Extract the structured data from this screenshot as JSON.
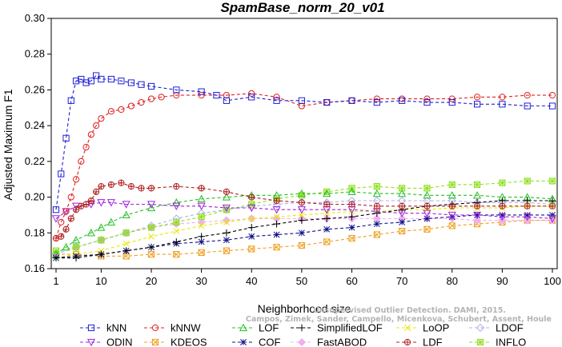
{
  "chart_data": {
    "type": "line",
    "title": "SpamBase_norm_20_v01",
    "xlabel": "Neighborhood size",
    "ylabel": "Adjusted Maximum F1",
    "xlim": [
      1,
      100
    ],
    "ylim": [
      0.16,
      0.3
    ],
    "xticks": [
      "1",
      "10",
      "20",
      "30",
      "40",
      "50",
      "60",
      "70",
      "80",
      "90",
      "100"
    ],
    "yticks": [
      "0.16",
      "0.18",
      "0.20",
      "0.22",
      "0.24",
      "0.26",
      "0.28",
      "0.30"
    ],
    "citation": [
      "Campos, Zimek, Sander, Campello, Micenkova, Schubert, Assent, Houle",
      "Unsupervised Outlier Detection. DAMI, 2015."
    ],
    "series": [
      {
        "name": "kNN",
        "color": "#1f1fd6",
        "marker": "square",
        "x": [
          1,
          2,
          3,
          4,
          5,
          6,
          7,
          8,
          9,
          10,
          12,
          14,
          16,
          18,
          20,
          25,
          30,
          33,
          35,
          40,
          45,
          50,
          55,
          60,
          65,
          70,
          75,
          80,
          85,
          90,
          95,
          100
        ],
        "y": [
          0.193,
          0.213,
          0.233,
          0.254,
          0.265,
          0.266,
          0.264,
          0.265,
          0.268,
          0.266,
          0.266,
          0.265,
          0.264,
          0.263,
          0.262,
          0.26,
          0.259,
          0.257,
          0.254,
          0.256,
          0.254,
          0.254,
          0.253,
          0.254,
          0.253,
          0.254,
          0.253,
          0.253,
          0.252,
          0.252,
          0.251,
          0.251
        ]
      },
      {
        "name": "kNNW",
        "color": "#e02020",
        "marker": "circle",
        "x": [
          1,
          2,
          3,
          4,
          5,
          6,
          7,
          8,
          9,
          10,
          12,
          14,
          16,
          18,
          20,
          22,
          25,
          30,
          35,
          40,
          45,
          50,
          55,
          60,
          65,
          70,
          75,
          80,
          85,
          90,
          95,
          100
        ],
        "y": [
          0.177,
          0.186,
          0.192,
          0.2,
          0.21,
          0.22,
          0.228,
          0.235,
          0.24,
          0.244,
          0.248,
          0.249,
          0.251,
          0.253,
          0.255,
          0.256,
          0.257,
          0.257,
          0.257,
          0.258,
          0.256,
          0.251,
          0.253,
          0.254,
          0.255,
          0.255,
          0.255,
          0.255,
          0.256,
          0.256,
          0.257,
          0.257
        ]
      },
      {
        "name": "LOF",
        "color": "#22c022",
        "marker": "triangle-up",
        "x": [
          1,
          3,
          5,
          8,
          10,
          12,
          15,
          20,
          25,
          30,
          35,
          40,
          45,
          50,
          55,
          60,
          65,
          70,
          75,
          80,
          85,
          90,
          95,
          100
        ],
        "y": [
          0.168,
          0.172,
          0.176,
          0.18,
          0.183,
          0.186,
          0.19,
          0.194,
          0.197,
          0.199,
          0.2,
          0.201,
          0.201,
          0.202,
          0.202,
          0.203,
          0.202,
          0.202,
          0.201,
          0.201,
          0.201,
          0.2,
          0.2,
          0.199
        ]
      },
      {
        "name": "SimplifiedLOF",
        "color": "#000000",
        "marker": "plus",
        "x": [
          1,
          5,
          10,
          15,
          20,
          25,
          30,
          35,
          40,
          45,
          50,
          55,
          60,
          65,
          70,
          75,
          80,
          85,
          90,
          95,
          100
        ],
        "y": [
          0.166,
          0.166,
          0.168,
          0.17,
          0.172,
          0.175,
          0.178,
          0.18,
          0.183,
          0.185,
          0.187,
          0.188,
          0.189,
          0.191,
          0.193,
          0.195,
          0.196,
          0.197,
          0.198,
          0.198,
          0.198
        ]
      },
      {
        "name": "LoOP",
        "color": "#e8e800",
        "marker": "x",
        "x": [
          1,
          5,
          10,
          15,
          20,
          25,
          30,
          35,
          40,
          45,
          50,
          55,
          60,
          65,
          70,
          75,
          80,
          85,
          90,
          95,
          100
        ],
        "y": [
          0.166,
          0.168,
          0.17,
          0.174,
          0.178,
          0.181,
          0.184,
          0.186,
          0.188,
          0.189,
          0.19,
          0.191,
          0.192,
          0.192,
          0.193,
          0.193,
          0.194,
          0.194,
          0.194,
          0.195,
          0.195
        ]
      },
      {
        "name": "LDOF",
        "color": "#b0b0f0",
        "marker": "diamond",
        "x": [
          1,
          5,
          10,
          15,
          20,
          25,
          30,
          35,
          40,
          45,
          50,
          55,
          60,
          65,
          70,
          75,
          80,
          85,
          90,
          95,
          100
        ],
        "y": [
          0.168,
          0.172,
          0.176,
          0.18,
          0.184,
          0.188,
          0.191,
          0.193,
          0.195,
          0.196,
          0.197,
          0.197,
          0.198,
          0.198,
          0.198,
          0.198,
          0.198,
          0.197,
          0.197,
          0.197,
          0.196
        ]
      },
      {
        "name": "ODIN",
        "color": "#a020e0",
        "marker": "triangle-down",
        "x": [
          1,
          3,
          5,
          8,
          10,
          12,
          15,
          20,
          25,
          30,
          35,
          40,
          45,
          50,
          55,
          60,
          65,
          70,
          75,
          80,
          85,
          90,
          95,
          100
        ],
        "y": [
          0.188,
          0.192,
          0.195,
          0.196,
          0.197,
          0.197,
          0.196,
          0.196,
          0.195,
          0.195,
          0.194,
          0.194,
          0.193,
          0.193,
          0.193,
          0.193,
          0.192,
          0.191,
          0.191,
          0.19,
          0.19,
          0.189,
          0.189,
          0.188
        ]
      },
      {
        "name": "KDEOS",
        "color": "#f0a020",
        "marker": "square-x",
        "x": [
          1,
          5,
          10,
          15,
          20,
          25,
          30,
          35,
          40,
          45,
          50,
          55,
          60,
          65,
          70,
          75,
          80,
          85,
          90,
          95,
          100
        ],
        "y": [
          0.168,
          0.168,
          0.167,
          0.167,
          0.168,
          0.168,
          0.169,
          0.17,
          0.171,
          0.172,
          0.173,
          0.175,
          0.177,
          0.179,
          0.181,
          0.182,
          0.184,
          0.185,
          0.186,
          0.187,
          0.187
        ]
      },
      {
        "name": "COF",
        "color": "#10108a",
        "marker": "star",
        "x": [
          1,
          5,
          10,
          15,
          20,
          25,
          30,
          35,
          40,
          45,
          50,
          55,
          60,
          65,
          70,
          75,
          80,
          85,
          90,
          95,
          100
        ],
        "y": [
          0.166,
          0.167,
          0.168,
          0.17,
          0.172,
          0.174,
          0.175,
          0.176,
          0.178,
          0.179,
          0.18,
          0.182,
          0.183,
          0.185,
          0.186,
          0.188,
          0.189,
          0.19,
          0.19,
          0.19,
          0.19
        ]
      },
      {
        "name": "FastABOD",
        "color": "#f0b0f0",
        "marker": "diamond-filled",
        "x": [
          1,
          5,
          10,
          15,
          20,
          25,
          30,
          35,
          40,
          45,
          50,
          55,
          60,
          65,
          70,
          75,
          80,
          85,
          90,
          95,
          100
        ],
        "y": [
          0.168,
          0.172,
          0.176,
          0.18,
          0.183,
          0.185,
          0.186,
          0.187,
          0.188,
          0.188,
          0.188,
          0.188,
          0.188,
          0.188,
          0.188,
          0.188,
          0.188,
          0.187,
          0.187,
          0.187,
          0.187
        ]
      },
      {
        "name": "LDF",
        "color": "#b02020",
        "marker": "circle-plus",
        "x": [
          1,
          2,
          3,
          4,
          5,
          6,
          7,
          8,
          9,
          10,
          12,
          14,
          16,
          18,
          20,
          25,
          30,
          35,
          40,
          45,
          50,
          55,
          60,
          65,
          70,
          75,
          80,
          85,
          90,
          95,
          100
        ],
        "y": [
          0.177,
          0.178,
          0.182,
          0.188,
          0.193,
          0.195,
          0.196,
          0.198,
          0.203,
          0.206,
          0.207,
          0.208,
          0.206,
          0.205,
          0.205,
          0.206,
          0.205,
          0.203,
          0.2,
          0.198,
          0.197,
          0.196,
          0.196,
          0.195,
          0.195,
          0.195,
          0.195,
          0.195,
          0.195,
          0.195,
          0.195
        ]
      },
      {
        "name": "INFLO",
        "color": "#90e020",
        "marker": "star-box",
        "x": [
          1,
          5,
          10,
          15,
          20,
          25,
          30,
          35,
          40,
          45,
          50,
          55,
          60,
          65,
          70,
          75,
          80,
          85,
          90,
          95,
          100
        ],
        "y": [
          0.17,
          0.172,
          0.176,
          0.18,
          0.183,
          0.186,
          0.189,
          0.193,
          0.196,
          0.199,
          0.201,
          0.203,
          0.205,
          0.206,
          0.205,
          0.205,
          0.207,
          0.207,
          0.208,
          0.209,
          0.209
        ]
      }
    ]
  }
}
